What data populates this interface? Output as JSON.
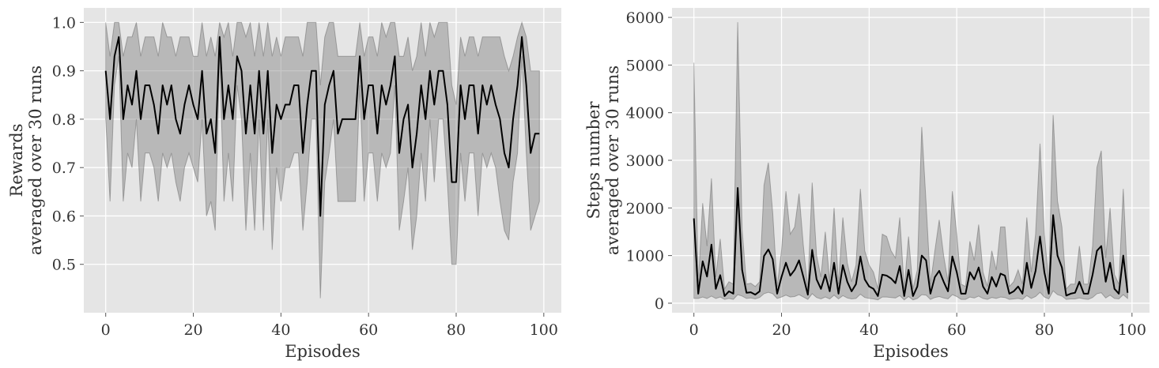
{
  "chart_data": [
    {
      "type": "line",
      "xlabel": "Episodes",
      "ylabel_lines": [
        "Rewards",
        "averaged over 30 runs"
      ],
      "xlim": [
        -5,
        104
      ],
      "ylim": [
        0.4,
        1.03
      ],
      "xticks": [
        0,
        20,
        40,
        60,
        80,
        100
      ],
      "yticks": [
        0.5,
        0.6,
        0.7,
        0.8,
        0.9,
        1.0
      ],
      "ytick_labels": [
        "0.5",
        "0.6",
        "0.7",
        "0.8",
        "0.9",
        "1.0"
      ],
      "grid": true,
      "x": [
        0,
        1,
        2,
        3,
        4,
        5,
        6,
        7,
        8,
        9,
        10,
        11,
        12,
        13,
        14,
        15,
        16,
        17,
        18,
        19,
        20,
        21,
        22,
        23,
        24,
        25,
        26,
        27,
        28,
        29,
        30,
        31,
        32,
        33,
        34,
        35,
        36,
        37,
        38,
        39,
        40,
        41,
        42,
        43,
        44,
        45,
        46,
        47,
        48,
        49,
        50,
        51,
        52,
        53,
        54,
        55,
        56,
        57,
        58,
        59,
        60,
        61,
        62,
        63,
        64,
        65,
        66,
        67,
        68,
        69,
        70,
        71,
        72,
        73,
        74,
        75,
        76,
        77,
        78,
        79,
        80,
        81,
        82,
        83,
        84,
        85,
        86,
        87,
        88,
        89,
        90,
        91,
        92,
        93,
        94,
        95,
        96,
        97,
        98,
        99
      ],
      "series": [
        {
          "values": [
            0.9,
            0.8,
            0.93,
            0.97,
            0.8,
            0.87,
            0.83,
            0.9,
            0.8,
            0.87,
            0.87,
            0.83,
            0.77,
            0.87,
            0.83,
            0.87,
            0.8,
            0.77,
            0.83,
            0.87,
            0.83,
            0.8,
            0.9,
            0.77,
            0.8,
            0.73,
            0.97,
            0.8,
            0.87,
            0.8,
            0.93,
            0.9,
            0.77,
            0.87,
            0.77,
            0.9,
            0.77,
            0.9,
            0.73,
            0.83,
            0.8,
            0.83,
            0.83,
            0.87,
            0.87,
            0.73,
            0.83,
            0.9,
            0.9,
            0.6,
            0.83,
            0.87,
            0.9,
            0.77,
            0.8,
            0.8,
            0.8,
            0.8,
            0.93,
            0.8,
            0.87,
            0.87,
            0.77,
            0.87,
            0.83,
            0.87,
            0.93,
            0.73,
            0.8,
            0.83,
            0.7,
            0.77,
            0.87,
            0.8,
            0.9,
            0.83,
            0.9,
            0.9,
            0.83,
            0.67,
            0.67,
            0.87,
            0.8,
            0.87,
            0.87,
            0.77,
            0.87,
            0.83,
            0.87,
            0.83,
            0.8,
            0.73,
            0.7,
            0.8,
            0.87,
            0.97,
            0.87,
            0.73,
            0.77,
            0.77
          ],
          "upper": [
            1.0,
            0.93,
            1.0,
            1.0,
            0.93,
            0.97,
            0.97,
            1.0,
            0.93,
            0.97,
            0.97,
            0.97,
            0.93,
            1.0,
            0.97,
            0.97,
            0.93,
            0.97,
            0.97,
            0.97,
            0.93,
            0.93,
            1.0,
            0.93,
            0.97,
            0.93,
            1.0,
            0.97,
            1.0,
            0.93,
            1.0,
            1.0,
            0.97,
            1.0,
            0.93,
            1.0,
            0.93,
            1.0,
            0.93,
            0.97,
            0.93,
            0.97,
            0.97,
            0.97,
            0.97,
            0.93,
            1.0,
            1.0,
            1.0,
            0.87,
            0.97,
            1.0,
            1.0,
            0.93,
            0.93,
            0.93,
            0.93,
            0.93,
            1.0,
            0.93,
            0.97,
            0.97,
            0.93,
            1.0,
            0.97,
            1.0,
            1.0,
            0.93,
            0.93,
            0.97,
            0.9,
            0.93,
            1.0,
            0.93,
            1.0,
            0.97,
            1.0,
            1.0,
            1.0,
            0.87,
            0.83,
            0.97,
            0.93,
            0.97,
            0.97,
            0.93,
            0.97,
            0.97,
            0.97,
            0.97,
            0.97,
            0.93,
            0.9,
            0.93,
            0.97,
            1.0,
            0.97,
            0.9,
            0.9,
            0.9
          ],
          "lower": [
            0.8,
            0.63,
            0.87,
            0.93,
            0.63,
            0.73,
            0.7,
            0.8,
            0.63,
            0.73,
            0.73,
            0.7,
            0.63,
            0.73,
            0.7,
            0.73,
            0.67,
            0.63,
            0.7,
            0.73,
            0.7,
            0.67,
            0.8,
            0.6,
            0.63,
            0.57,
            0.93,
            0.63,
            0.73,
            0.63,
            0.87,
            0.8,
            0.57,
            0.73,
            0.57,
            0.8,
            0.57,
            0.8,
            0.53,
            0.7,
            0.63,
            0.7,
            0.7,
            0.73,
            0.73,
            0.57,
            0.67,
            0.8,
            0.8,
            0.43,
            0.67,
            0.73,
            0.8,
            0.63,
            0.63,
            0.63,
            0.63,
            0.63,
            0.87,
            0.63,
            0.73,
            0.73,
            0.63,
            0.73,
            0.7,
            0.73,
            0.87,
            0.57,
            0.63,
            0.7,
            0.53,
            0.6,
            0.73,
            0.63,
            0.8,
            0.67,
            0.8,
            0.8,
            0.67,
            0.5,
            0.5,
            0.73,
            0.63,
            0.73,
            0.73,
            0.6,
            0.73,
            0.7,
            0.73,
            0.7,
            0.63,
            0.57,
            0.55,
            0.67,
            0.73,
            0.93,
            0.73,
            0.57,
            0.6,
            0.63
          ]
        }
      ]
    },
    {
      "type": "line",
      "xlabel": "Episodes",
      "ylabel_lines": [
        "Steps number",
        "averaged over 30 runs"
      ],
      "xlim": [
        -5,
        104
      ],
      "ylim": [
        -200,
        6200
      ],
      "xticks": [
        0,
        20,
        40,
        60,
        80,
        100
      ],
      "yticks": [
        0,
        1000,
        2000,
        3000,
        4000,
        5000,
        6000
      ],
      "ytick_labels": [
        "0",
        "1000",
        "2000",
        "3000",
        "4000",
        "5000",
        "6000"
      ],
      "grid": true,
      "x": [
        0,
        1,
        2,
        3,
        4,
        5,
        6,
        7,
        8,
        9,
        10,
        11,
        12,
        13,
        14,
        15,
        16,
        17,
        18,
        19,
        20,
        21,
        22,
        23,
        24,
        25,
        26,
        27,
        28,
        29,
        30,
        31,
        32,
        33,
        34,
        35,
        36,
        37,
        38,
        39,
        40,
        41,
        42,
        43,
        44,
        45,
        46,
        47,
        48,
        49,
        50,
        51,
        52,
        53,
        54,
        55,
        56,
        57,
        58,
        59,
        60,
        61,
        62,
        63,
        64,
        65,
        66,
        67,
        68,
        69,
        70,
        71,
        72,
        73,
        74,
        75,
        76,
        77,
        78,
        79,
        80,
        81,
        82,
        83,
        84,
        85,
        86,
        87,
        88,
        89,
        90,
        91,
        92,
        93,
        94,
        95,
        96,
        97,
        98,
        99
      ],
      "series": [
        {
          "values": [
            1780,
            200,
            880,
            560,
            1230,
            300,
            590,
            150,
            250,
            200,
            2420,
            700,
            220,
            230,
            180,
            250,
            990,
            1130,
            920,
            200,
            550,
            850,
            580,
            700,
            900,
            550,
            180,
            1120,
            500,
            300,
            600,
            250,
            850,
            200,
            800,
            450,
            250,
            400,
            980,
            500,
            350,
            300,
            150,
            600,
            580,
            520,
            420,
            780,
            150,
            700,
            150,
            350,
            1000,
            900,
            200,
            550,
            680,
            450,
            250,
            980,
            650,
            200,
            200,
            650,
            500,
            750,
            350,
            200,
            550,
            350,
            620,
            580,
            200,
            250,
            350,
            200,
            850,
            320,
            680,
            1400,
            650,
            200,
            1850,
            1000,
            750,
            160,
            200,
            220,
            450,
            200,
            200,
            600,
            1100,
            1200,
            450,
            850,
            300,
            200,
            1000,
            220
          ],
          "upper": [
            5050,
            400,
            2100,
            1200,
            2620,
            550,
            1350,
            300,
            450,
            400,
            5900,
            1550,
            400,
            420,
            350,
            450,
            2480,
            2950,
            1900,
            350,
            1100,
            2350,
            1450,
            1600,
            2300,
            1200,
            300,
            2530,
            1000,
            550,
            1500,
            450,
            2000,
            400,
            1800,
            850,
            450,
            800,
            2400,
            1100,
            800,
            650,
            300,
            1450,
            1400,
            1100,
            950,
            1800,
            300,
            1400,
            300,
            700,
            3700,
            2100,
            400,
            1100,
            1750,
            1000,
            450,
            2350,
            1450,
            400,
            350,
            1300,
            900,
            1650,
            650,
            350,
            1100,
            700,
            1600,
            1600,
            350,
            450,
            700,
            400,
            1800,
            650,
            1450,
            3350,
            1450,
            450,
            3950,
            2150,
            1600,
            300,
            400,
            400,
            1200,
            400,
            400,
            1200,
            2850,
            3200,
            950,
            2000,
            600,
            400,
            2400,
            450
          ],
          "lower": [
            100,
            100,
            130,
            100,
            150,
            100,
            130,
            80,
            100,
            80,
            180,
            150,
            100,
            110,
            90,
            120,
            200,
            230,
            200,
            100,
            130,
            170,
            130,
            140,
            180,
            130,
            80,
            200,
            120,
            90,
            130,
            90,
            170,
            90,
            160,
            110,
            90,
            100,
            190,
            120,
            100,
            90,
            70,
            130,
            130,
            120,
            110,
            160,
            70,
            140,
            70,
            100,
            180,
            170,
            80,
            120,
            140,
            110,
            90,
            180,
            140,
            80,
            80,
            130,
            110,
            150,
            100,
            80,
            120,
            100,
            130,
            120,
            80,
            90,
            100,
            80,
            160,
            100,
            140,
            230,
            130,
            90,
            260,
            180,
            150,
            80,
            90,
            90,
            110,
            90,
            80,
            120,
            200,
            220,
            110,
            170,
            100,
            90,
            180,
            100
          ]
        }
      ]
    }
  ]
}
